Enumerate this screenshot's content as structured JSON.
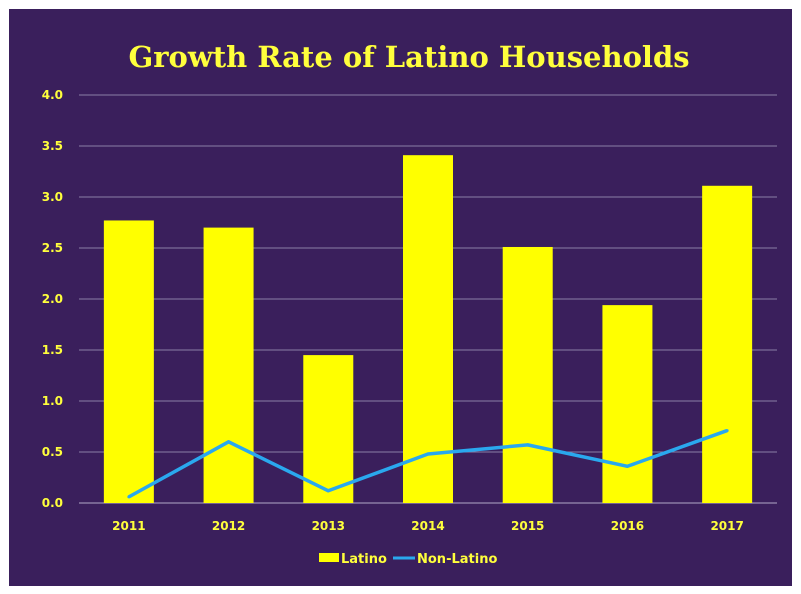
{
  "colors": {
    "background": "#3a1f5c",
    "bar": "#ffff00",
    "line": "#2aa8ee",
    "text": "#ffff3c",
    "grid": "#8a7fa6"
  },
  "chart_data": {
    "type": "bar",
    "title": "Growth Rate of Latino Households",
    "categories": [
      "2011",
      "2012",
      "2013",
      "2014",
      "2015",
      "2016",
      "2017"
    ],
    "series": [
      {
        "name": "Latino",
        "type": "bar",
        "values": [
          2.77,
          2.7,
          1.45,
          3.41,
          2.51,
          1.94,
          3.11
        ]
      },
      {
        "name": "Non-Latino",
        "type": "line",
        "values": [
          0.06,
          0.6,
          0.12,
          0.48,
          0.57,
          0.36,
          0.71
        ]
      }
    ],
    "ylim": [
      0,
      4
    ],
    "yticks": [
      "0.0",
      "0.5",
      "1.0",
      "1.5",
      "2.0",
      "2.5",
      "3.0",
      "3.5",
      "4.0"
    ],
    "grid": true,
    "legend_position": "bottom"
  }
}
